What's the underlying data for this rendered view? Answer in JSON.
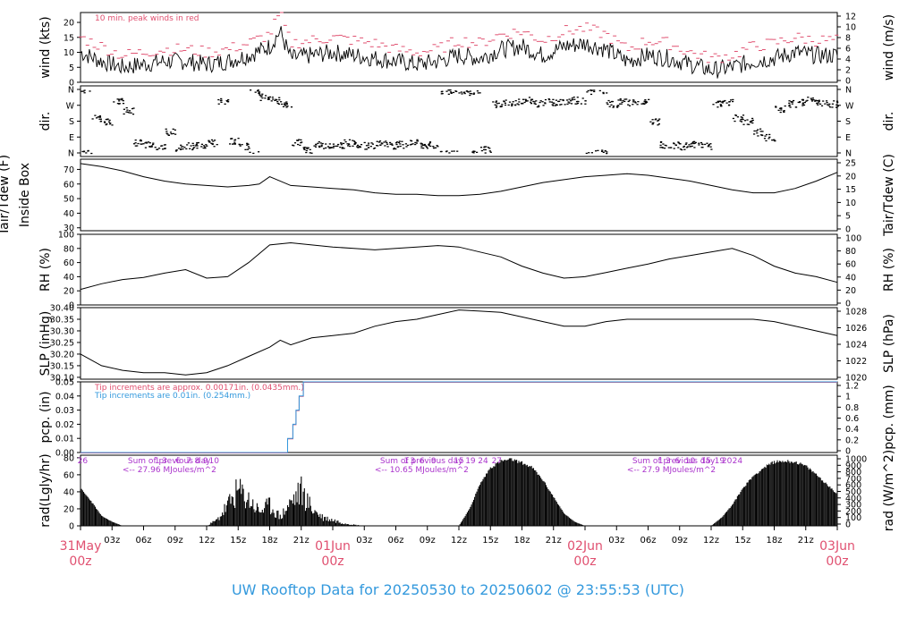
{
  "chart_data": [
    {
      "type": "line",
      "panel": "wind",
      "ylabel": "wind (kts)",
      "ylabel_right": "wind (m/s)",
      "ylim": [
        0,
        23.3
      ],
      "yticks": [
        0,
        5,
        10,
        15,
        20
      ],
      "yticks_right": [
        0,
        2,
        4,
        6,
        8,
        10,
        12
      ],
      "annotation": "10 min. peak winds in red",
      "colors": {
        "mean": "#000000",
        "peak": "#e05070"
      },
      "series": [
        {
          "name": "mean",
          "x_hours": [
            0,
            2,
            4,
            6,
            8,
            10,
            12,
            14,
            16,
            18,
            19,
            20,
            22,
            24,
            26,
            28,
            30,
            32,
            34,
            36,
            38,
            40,
            42,
            44,
            46,
            48,
            50,
            52,
            54,
            56,
            58,
            60,
            62,
            64,
            66,
            68,
            70,
            72
          ],
          "values": [
            10,
            7,
            5,
            6,
            7,
            7,
            6,
            7,
            9,
            12,
            17,
            8,
            9,
            10,
            9,
            8,
            7,
            6,
            7,
            9,
            8,
            11,
            12,
            9,
            12,
            13,
            11,
            7,
            9,
            8,
            6,
            4,
            5,
            7,
            8,
            10,
            9,
            9
          ]
        },
        {
          "name": "peak",
          "x_hours": [
            0,
            2,
            4,
            6,
            8,
            10,
            12,
            14,
            16,
            18,
            19,
            20,
            22,
            24,
            26,
            28,
            30,
            32,
            34,
            36,
            38,
            40,
            42,
            44,
            46,
            48,
            50,
            52,
            54,
            56,
            58,
            60,
            62,
            64,
            66,
            68,
            70,
            72
          ],
          "values": [
            15,
            12,
            9,
            10,
            11,
            11,
            10,
            11,
            13,
            16,
            23,
            13,
            14,
            15,
            14,
            13,
            11,
            10,
            11,
            14,
            13,
            16,
            17,
            14,
            17,
            18,
            16,
            11,
            14,
            13,
            10,
            8,
            9,
            12,
            13,
            15,
            14,
            14
          ]
        }
      ]
    },
    {
      "type": "scatter",
      "panel": "direction",
      "ylabel": "dir.",
      "yticks": [
        "N",
        "E",
        "S",
        "W",
        "N"
      ],
      "yticks_right": [
        "N",
        "E",
        "S",
        "W",
        "N"
      ],
      "points": [
        [
          0,
          360
        ],
        [
          1,
          200
        ],
        [
          2,
          180
        ],
        [
          3,
          300
        ],
        [
          4,
          240
        ],
        [
          5,
          60
        ],
        [
          6,
          50
        ],
        [
          7,
          40
        ],
        [
          8,
          120
        ],
        [
          9,
          30
        ],
        [
          10,
          40
        ],
        [
          11,
          50
        ],
        [
          12,
          60
        ],
        [
          13,
          300
        ],
        [
          14,
          70
        ],
        [
          15,
          40
        ],
        [
          16,
          350
        ],
        [
          17,
          320
        ],
        [
          18,
          300
        ],
        [
          19,
          280
        ],
        [
          20,
          60
        ],
        [
          21,
          20
        ],
        [
          22,
          50
        ],
        [
          23,
          40
        ],
        [
          24,
          45
        ],
        [
          25,
          60
        ],
        [
          26,
          50
        ],
        [
          27,
          40
        ],
        [
          28,
          55
        ],
        [
          29,
          45
        ],
        [
          30,
          50
        ],
        [
          31,
          60
        ],
        [
          32,
          40
        ],
        [
          33,
          50
        ],
        [
          34,
          355
        ],
        [
          35,
          360
        ],
        [
          36,
          350
        ],
        [
          37,
          355
        ],
        [
          38,
          20
        ],
        [
          39,
          280
        ],
        [
          40,
          290
        ],
        [
          41,
          290
        ],
        [
          42,
          300
        ],
        [
          43,
          280
        ],
        [
          44,
          290
        ],
        [
          45,
          290
        ],
        [
          46,
          300
        ],
        [
          47,
          300
        ],
        [
          48,
          355
        ],
        [
          49,
          360
        ],
        [
          50,
          280
        ],
        [
          51,
          290
        ],
        [
          52,
          290
        ],
        [
          53,
          300
        ],
        [
          54,
          180
        ],
        [
          55,
          50
        ],
        [
          56,
          45
        ],
        [
          57,
          40
        ],
        [
          58,
          50
        ],
        [
          59,
          40
        ],
        [
          60,
          280
        ],
        [
          61,
          290
        ],
        [
          62,
          200
        ],
        [
          63,
          180
        ],
        [
          64,
          120
        ],
        [
          65,
          90
        ],
        [
          66,
          250
        ],
        [
          67,
          280
        ],
        [
          68,
          290
        ],
        [
          69,
          300
        ],
        [
          70,
          290
        ],
        [
          71,
          280
        ],
        [
          72,
          290
        ]
      ]
    },
    {
      "type": "line",
      "panel": "temperature",
      "ylabel": "Tair/Tdew (F)",
      "ylabel_line2": "Inside Box",
      "ylabel_right": "Tair/Tdew (C)",
      "ylim": [
        28,
        77
      ],
      "yticks": [
        30,
        40,
        50,
        60,
        70
      ],
      "yticks_right": [
        0,
        5,
        10,
        15,
        20,
        25
      ],
      "x_hours": [
        0,
        2,
        4,
        6,
        8,
        10,
        12,
        14,
        16,
        17,
        18,
        20,
        22,
        24,
        26,
        28,
        30,
        32,
        34,
        36,
        38,
        40,
        42,
        44,
        46,
        48,
        50,
        52,
        54,
        56,
        58,
        60,
        62,
        64,
        66,
        68,
        70,
        72
      ],
      "values": [
        74,
        72,
        69,
        65,
        62,
        60,
        59,
        58,
        59,
        60,
        65,
        59,
        58,
        57,
        56,
        54,
        53,
        53,
        52,
        52,
        53,
        55,
        58,
        61,
        63,
        65,
        66,
        67,
        66,
        64,
        62,
        59,
        56,
        54,
        54,
        57,
        62,
        68
      ]
    },
    {
      "type": "line",
      "panel": "rh",
      "ylabel": "RH (%)",
      "ylabel_right": "RH (%)",
      "ylim": [
        0,
        100
      ],
      "yticks": [
        0,
        20,
        40,
        60,
        80,
        100
      ],
      "x_hours": [
        0,
        2,
        4,
        6,
        8,
        10,
        12,
        14,
        16,
        18,
        20,
        22,
        24,
        26,
        28,
        30,
        32,
        34,
        36,
        38,
        40,
        42,
        44,
        46,
        48,
        50,
        52,
        54,
        56,
        58,
        60,
        62,
        64,
        66,
        68,
        70,
        72
      ],
      "values": [
        22,
        30,
        36,
        39,
        45,
        50,
        38,
        40,
        60,
        85,
        88,
        85,
        82,
        80,
        78,
        80,
        82,
        84,
        82,
        75,
        68,
        55,
        45,
        38,
        40,
        46,
        52,
        58,
        65,
        70,
        75,
        80,
        70,
        55,
        45,
        40,
        32
      ]
    },
    {
      "type": "line",
      "panel": "pressure",
      "ylabel": "SLP (inHg)",
      "ylabel_right": "SLP (hPa)",
      "ylim": [
        30.092,
        30.4
      ],
      "yticks": [
        30.1,
        30.15,
        30.2,
        30.25,
        30.3,
        30.35,
        30.4
      ],
      "yticks_right": [
        1020,
        1022,
        1024,
        1026,
        1028
      ],
      "x_hours": [
        0,
        2,
        4,
        6,
        8,
        10,
        12,
        14,
        16,
        18,
        19,
        20,
        22,
        24,
        26,
        28,
        30,
        32,
        34,
        36,
        38,
        40,
        42,
        44,
        46,
        48,
        50,
        52,
        54,
        56,
        58,
        60,
        62,
        64,
        66,
        68,
        70,
        72
      ],
      "values": [
        30.2,
        30.15,
        30.13,
        30.12,
        30.12,
        30.11,
        30.12,
        30.15,
        30.19,
        30.23,
        30.26,
        30.24,
        30.27,
        30.28,
        30.29,
        30.32,
        30.34,
        30.35,
        30.37,
        30.39,
        30.385,
        30.38,
        30.36,
        30.34,
        30.32,
        30.32,
        30.34,
        30.35,
        30.35,
        30.35,
        30.35,
        30.35,
        30.35,
        30.35,
        30.34,
        30.32,
        30.3,
        30.28
      ]
    },
    {
      "type": "line",
      "panel": "precipitation",
      "ylabel": "pcp. (in)",
      "ylabel_right": "pcp. (mm)",
      "ylim": [
        0,
        0.05
      ],
      "yticks": [
        0.0,
        0.01,
        0.02,
        0.03,
        0.04,
        0.05
      ],
      "yticks_right": [
        0,
        0.2,
        0.4,
        0.6,
        0.8,
        1,
        1.2
      ],
      "annotations": [
        "Tip increments are approx. 0.00171in. (0.0435mm.)",
        "Tip increments are 0.01in. (0.254mm.)"
      ],
      "colors": {
        "approx": "#e05070",
        "tip": "#3399dd"
      },
      "series": [
        {
          "name": "tip",
          "x_hours": [
            0,
            19.7,
            19.7,
            20.2,
            20.2,
            20.5,
            20.5,
            20.8,
            20.8,
            21.2,
            21.2,
            72
          ],
          "values": [
            0,
            0,
            0.01,
            0.01,
            0.02,
            0.02,
            0.03,
            0.03,
            0.04,
            0.04,
            0.05,
            0.05
          ]
        },
        {
          "name": "approx",
          "x_hours": [
            0,
            19.7,
            19.7,
            20.2,
            20.2,
            20.5,
            20.5,
            20.8,
            20.8,
            21.2,
            21.2,
            72
          ],
          "values": [
            0,
            0,
            0.01,
            0.01,
            0.02,
            0.02,
            0.03,
            0.03,
            0.04,
            0.04,
            0.05,
            0.05
          ]
        }
      ]
    },
    {
      "type": "area",
      "panel": "radiation",
      "ylabel": "rad(Lgly/hr)",
      "ylabel_right": "rad (W/m^2)",
      "ylim": [
        0,
        83
      ],
      "yticks": [
        0,
        20,
        40,
        60,
        80
      ],
      "yticks_right": [
        0,
        100,
        200,
        300,
        400,
        500,
        600,
        700,
        800,
        900,
        1000
      ],
      "x_hours": [
        0,
        1,
        2,
        3,
        4,
        12,
        13,
        14,
        15,
        16,
        17,
        18,
        19,
        20,
        21,
        22,
        23,
        24,
        25,
        26,
        27,
        28,
        36,
        37,
        38,
        39,
        40,
        41,
        42,
        43,
        44,
        45,
        46,
        47,
        48,
        49,
        50,
        51,
        52,
        60,
        61,
        62,
        63,
        64,
        65,
        66,
        67,
        68,
        69,
        70,
        71,
        72
      ],
      "values": [
        45,
        30,
        12,
        5,
        0,
        0,
        10,
        35,
        60,
        45,
        25,
        35,
        15,
        40,
        60,
        30,
        15,
        10,
        5,
        2,
        0,
        0,
        0,
        20,
        50,
        70,
        78,
        80,
        76,
        70,
        55,
        35,
        15,
        5,
        0,
        0,
        0,
        0,
        0,
        0,
        10,
        25,
        45,
        60,
        70,
        77,
        78,
        77,
        72,
        62,
        50,
        38
      ],
      "hour_labels": {
        "day1": [
          "26",
          "1",
          "3",
          "6",
          "7",
          "8",
          "9",
          "10"
        ],
        "day2": [
          "1",
          "3",
          "6",
          "9",
          "15",
          "19",
          "24",
          "27"
        ],
        "day3": [
          "1",
          "3",
          "6",
          "10",
          "15",
          "19",
          "20",
          "24"
        ]
      },
      "summaries": [
        {
          "line1": "Sum of previous day",
          "line2": "<-- 27.96 MJoules/m^2"
        },
        {
          "line1": "Sum of previous day",
          "line2": "<-- 10.65 MJoules/m^2"
        },
        {
          "line1": "Sum of previous day",
          "line2": "<-- 27.9 MJoules/m^2"
        }
      ],
      "color_summary": "#aa33cc"
    }
  ],
  "x_axis": {
    "hours_total": 72,
    "tick_labels": [
      "03z",
      "06z",
      "09z",
      "12z",
      "15z",
      "18z",
      "21z",
      "03z",
      "06z",
      "09z",
      "12z",
      "15z",
      "18z",
      "21z",
      "03z",
      "06z",
      "09z",
      "12z",
      "15z",
      "18z",
      "21z"
    ],
    "day_labels": [
      {
        "day": "31May",
        "hour": "00z"
      },
      {
        "day": "01Jun",
        "hour": "00z"
      },
      {
        "day": "02Jun",
        "hour": "00z"
      },
      {
        "day": "03Jun",
        "hour": "00z"
      }
    ]
  },
  "title": "UW Rooftop Data for 20250530  to  20250602 @ 23:55:53  (UTC)"
}
